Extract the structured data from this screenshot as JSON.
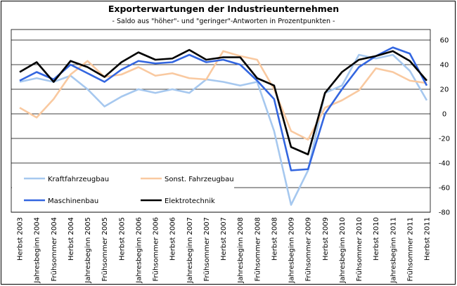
{
  "chart_data": {
    "type": "line",
    "title": "Exporterwartungen der Industrieunternehmen",
    "subtitle": "- Saldo aus \"höher\"- und \"geringer\"-Antworten in Prozentpunkten -",
    "categories": [
      "Herbst 2003",
      "Jahresbeginn 2004",
      "Frühsommer 2004",
      "Herbst 2004",
      "Jahresbeginn 2005",
      "Frühsommer 2005",
      "Herbst 2005",
      "Jahresbeginn 2006",
      "Frühsommer 2006",
      "Herbst 2006",
      "Jahresbeginn 2007",
      "Frühsommer 2007",
      "Herbst 2007",
      "Jahresbeginn 2008",
      "Frühsommer 2008",
      "Herbst 2008",
      "Jahresbeginn 2009",
      "Frühsommer 2009",
      "Herbst 2009",
      "Jahresbeginn 2010",
      "Frühsommer 2010",
      "Herbst 2010",
      "Jahresbeginn 2011",
      "Frühsommer 2011",
      "Herbst 2011"
    ],
    "series": [
      {
        "name": "Kraftfahrzeugbau",
        "color": "#a6c8ef",
        "values": [
          26,
          29,
          26,
          31,
          20,
          6,
          14,
          20,
          17,
          20,
          17,
          28,
          26,
          23,
          26,
          -14,
          -74,
          -46,
          17,
          23,
          48,
          45,
          48,
          35,
          11
        ]
      },
      {
        "name": "Sonst. Fahrzeugbau",
        "color": "#f9c9a0",
        "values": [
          5,
          -3,
          12,
          32,
          43,
          30,
          32,
          38,
          31,
          33,
          29,
          28,
          51,
          47,
          44,
          20,
          -14,
          -21,
          5,
          11,
          19,
          37,
          34,
          27,
          25
        ]
      },
      {
        "name": "Maschinenbau",
        "color": "#3366e0",
        "values": [
          27,
          34,
          28,
          40,
          33,
          26,
          36,
          43,
          41,
          42,
          48,
          42,
          44,
          40,
          27,
          12,
          -46,
          -45,
          0,
          20,
          38,
          47,
          54,
          49,
          23
        ]
      },
      {
        "name": "Elektrotechnik",
        "color": "#000000",
        "values": [
          34,
          42,
          26,
          43,
          38,
          30,
          42,
          50,
          44,
          45,
          52,
          44,
          46,
          46,
          29,
          23,
          -27,
          -33,
          17,
          34,
          44,
          47,
          51,
          43,
          27
        ]
      }
    ],
    "ylim": [
      -80,
      60
    ],
    "yticks": [
      -80,
      -60,
      -40,
      -20,
      0,
      20,
      40,
      60
    ],
    "grid": true
  }
}
